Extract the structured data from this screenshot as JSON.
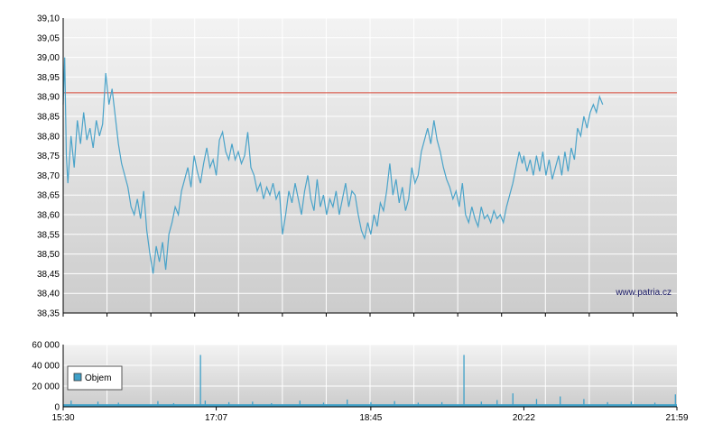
{
  "watermark": "www.patria.cz",
  "colors": {
    "price_line": "#4aa3c9",
    "reference_line": "#d94a3a",
    "volume_bar": "#3fa0c8",
    "grid": "#ffffff",
    "panel_top": "#f2f2f2",
    "panel_bottom": "#cfcfcf",
    "axis": "#000000"
  },
  "chart_data": [
    {
      "type": "line",
      "name": "price",
      "x_ticks": [
        "15:30",
        "17:07",
        "18:45",
        "20:22",
        "21:59"
      ],
      "y_ticks": [
        "39,10",
        "39,05",
        "39,00",
        "38,95",
        "38,90",
        "38,85",
        "38,80",
        "38,75",
        "38,70",
        "38,65",
        "38,60",
        "38,55",
        "38,50",
        "38,45",
        "38,40",
        "38,35"
      ],
      "ylim": [
        38.35,
        39.1
      ],
      "xlim": [
        "15:30",
        "21:59"
      ],
      "reference_line": 38.91,
      "grid": true,
      "series_points": [
        [
          "15:30",
          38.88
        ],
        [
          "15:31",
          39.0
        ],
        [
          "15:32",
          38.75
        ],
        [
          "15:33",
          38.68
        ],
        [
          "15:35",
          38.8
        ],
        [
          "15:37",
          38.72
        ],
        [
          "15:39",
          38.84
        ],
        [
          "15:41",
          38.78
        ],
        [
          "15:43",
          38.86
        ],
        [
          "15:45",
          38.79
        ],
        [
          "15:47",
          38.82
        ],
        [
          "15:49",
          38.77
        ],
        [
          "15:51",
          38.84
        ],
        [
          "15:53",
          38.8
        ],
        [
          "15:55",
          38.83
        ],
        [
          "15:57",
          38.96
        ],
        [
          "15:59",
          38.88
        ],
        [
          "16:01",
          38.92
        ],
        [
          "16:03",
          38.85
        ],
        [
          "16:05",
          38.78
        ],
        [
          "16:07",
          38.73
        ],
        [
          "16:09",
          38.7
        ],
        [
          "16:11",
          38.67
        ],
        [
          "16:13",
          38.62
        ],
        [
          "16:15",
          38.6
        ],
        [
          "16:17",
          38.64
        ],
        [
          "16:19",
          38.59
        ],
        [
          "16:21",
          38.66
        ],
        [
          "16:23",
          38.56
        ],
        [
          "16:25",
          38.5
        ],
        [
          "16:27",
          38.45
        ],
        [
          "16:29",
          38.52
        ],
        [
          "16:31",
          38.48
        ],
        [
          "16:33",
          38.53
        ],
        [
          "16:35",
          38.46
        ],
        [
          "16:37",
          38.55
        ],
        [
          "16:39",
          38.58
        ],
        [
          "16:41",
          38.62
        ],
        [
          "16:43",
          38.6
        ],
        [
          "16:45",
          38.66
        ],
        [
          "16:47",
          38.69
        ],
        [
          "16:49",
          38.72
        ],
        [
          "16:51",
          38.67
        ],
        [
          "16:53",
          38.75
        ],
        [
          "16:55",
          38.71
        ],
        [
          "16:57",
          38.68
        ],
        [
          "16:59",
          38.73
        ],
        [
          "17:01",
          38.77
        ],
        [
          "17:03",
          38.72
        ],
        [
          "17:05",
          38.74
        ],
        [
          "17:07",
          38.7
        ],
        [
          "17:09",
          38.79
        ],
        [
          "17:11",
          38.81
        ],
        [
          "17:13",
          38.76
        ],
        [
          "17:15",
          38.74
        ],
        [
          "17:17",
          38.78
        ],
        [
          "17:19",
          38.74
        ],
        [
          "17:21",
          38.76
        ],
        [
          "17:23",
          38.73
        ],
        [
          "17:25",
          38.75
        ],
        [
          "17:27",
          38.81
        ],
        [
          "17:29",
          38.72
        ],
        [
          "17:31",
          38.7
        ],
        [
          "17:33",
          38.66
        ],
        [
          "17:35",
          38.68
        ],
        [
          "17:37",
          38.64
        ],
        [
          "17:39",
          38.67
        ],
        [
          "17:41",
          38.65
        ],
        [
          "17:43",
          38.68
        ],
        [
          "17:45",
          38.64
        ],
        [
          "17:47",
          38.66
        ],
        [
          "17:49",
          38.55
        ],
        [
          "17:51",
          38.6
        ],
        [
          "17:53",
          38.66
        ],
        [
          "17:55",
          38.63
        ],
        [
          "17:57",
          38.68
        ],
        [
          "17:59",
          38.64
        ],
        [
          "18:01",
          38.6
        ],
        [
          "18:03",
          38.66
        ],
        [
          "18:05",
          38.7
        ],
        [
          "18:07",
          38.64
        ],
        [
          "18:09",
          38.61
        ],
        [
          "18:11",
          38.69
        ],
        [
          "18:13",
          38.62
        ],
        [
          "18:15",
          38.65
        ],
        [
          "18:17",
          38.6
        ],
        [
          "18:19",
          38.64
        ],
        [
          "18:21",
          38.62
        ],
        [
          "18:23",
          38.66
        ],
        [
          "18:25",
          38.6
        ],
        [
          "18:27",
          38.64
        ],
        [
          "18:29",
          38.68
        ],
        [
          "18:31",
          38.62
        ],
        [
          "18:33",
          38.66
        ],
        [
          "18:35",
          38.65
        ],
        [
          "18:37",
          38.6
        ],
        [
          "18:39",
          38.56
        ],
        [
          "18:41",
          38.54
        ],
        [
          "18:43",
          38.58
        ],
        [
          "18:45",
          38.55
        ],
        [
          "18:47",
          38.6
        ],
        [
          "18:49",
          38.57
        ],
        [
          "18:51",
          38.63
        ],
        [
          "18:53",
          38.61
        ],
        [
          "18:55",
          38.66
        ],
        [
          "18:57",
          38.73
        ],
        [
          "18:59",
          38.65
        ],
        [
          "19:01",
          38.69
        ],
        [
          "19:03",
          38.63
        ],
        [
          "19:05",
          38.67
        ],
        [
          "19:07",
          38.61
        ],
        [
          "19:09",
          38.64
        ],
        [
          "19:11",
          38.72
        ],
        [
          "19:13",
          38.68
        ],
        [
          "19:15",
          38.7
        ],
        [
          "19:17",
          38.76
        ],
        [
          "19:19",
          38.79
        ],
        [
          "19:21",
          38.82
        ],
        [
          "19:23",
          38.78
        ],
        [
          "19:25",
          38.84
        ],
        [
          "19:27",
          38.79
        ],
        [
          "19:29",
          38.76
        ],
        [
          "19:31",
          38.72
        ],
        [
          "19:33",
          38.69
        ],
        [
          "19:35",
          38.67
        ],
        [
          "19:37",
          38.64
        ],
        [
          "19:39",
          38.66
        ],
        [
          "19:41",
          38.62
        ],
        [
          "19:43",
          38.68
        ],
        [
          "19:45",
          38.6
        ],
        [
          "19:47",
          38.58
        ],
        [
          "19:49",
          38.62
        ],
        [
          "19:51",
          38.59
        ],
        [
          "19:53",
          38.57
        ],
        [
          "19:55",
          38.62
        ],
        [
          "19:57",
          38.59
        ],
        [
          "19:59",
          38.6
        ],
        [
          "20:01",
          38.58
        ],
        [
          "20:03",
          38.61
        ],
        [
          "20:05",
          38.59
        ],
        [
          "20:07",
          38.6
        ],
        [
          "20:09",
          38.58
        ],
        [
          "20:11",
          38.62
        ],
        [
          "20:13",
          38.65
        ],
        [
          "20:15",
          38.68
        ],
        [
          "20:17",
          38.72
        ],
        [
          "20:19",
          38.76
        ],
        [
          "20:21",
          38.73
        ],
        [
          "20:22",
          38.75
        ],
        [
          "20:24",
          38.71
        ],
        [
          "20:26",
          38.74
        ],
        [
          "20:28",
          38.7
        ],
        [
          "20:30",
          38.75
        ],
        [
          "20:32",
          38.71
        ],
        [
          "20:34",
          38.76
        ],
        [
          "20:36",
          38.7
        ],
        [
          "20:38",
          38.74
        ],
        [
          "20:40",
          38.69
        ],
        [
          "20:42",
          38.72
        ],
        [
          "20:44",
          38.75
        ],
        [
          "20:46",
          38.7
        ],
        [
          "20:48",
          38.76
        ],
        [
          "20:50",
          38.71
        ],
        [
          "20:52",
          38.77
        ],
        [
          "20:54",
          38.74
        ],
        [
          "20:56",
          38.82
        ],
        [
          "20:58",
          38.8
        ],
        [
          "21:00",
          38.85
        ],
        [
          "21:02",
          38.82
        ],
        [
          "21:04",
          38.86
        ],
        [
          "21:06",
          38.88
        ],
        [
          "21:08",
          38.86
        ],
        [
          "21:10",
          38.9
        ],
        [
          "21:12",
          38.88
        ]
      ]
    },
    {
      "type": "bar",
      "name": "volume",
      "x_ticks": [
        "15:30",
        "17:07",
        "18:45",
        "20:22",
        "21:59"
      ],
      "y_ticks": [
        "60 000",
        "40 000",
        "20 000",
        "0"
      ],
      "ylim": [
        0,
        60000
      ],
      "legend": "Objem",
      "legend_position": "left",
      "grid": true,
      "spikes": [
        [
          "15:35",
          6000
        ],
        [
          "15:52",
          5000
        ],
        [
          "16:05",
          4000
        ],
        [
          "16:30",
          5500
        ],
        [
          "16:40",
          3500
        ],
        [
          "16:57",
          50000
        ],
        [
          "17:00",
          6000
        ],
        [
          "17:15",
          4500
        ],
        [
          "17:30",
          5000
        ],
        [
          "17:42",
          3500
        ],
        [
          "18:00",
          6000
        ],
        [
          "18:15",
          4000
        ],
        [
          "18:30",
          7000
        ],
        [
          "18:45",
          4500
        ],
        [
          "19:00",
          5500
        ],
        [
          "19:15",
          4000
        ],
        [
          "19:30",
          4500
        ],
        [
          "19:44",
          50000
        ],
        [
          "19:55",
          5000
        ],
        [
          "20:05",
          6500
        ],
        [
          "20:15",
          13000
        ],
        [
          "20:30",
          7500
        ],
        [
          "20:45",
          10000
        ],
        [
          "21:00",
          7500
        ],
        [
          "21:15",
          4500
        ],
        [
          "21:30",
          5000
        ],
        [
          "21:45",
          4000
        ],
        [
          "21:58",
          12000
        ]
      ]
    }
  ]
}
